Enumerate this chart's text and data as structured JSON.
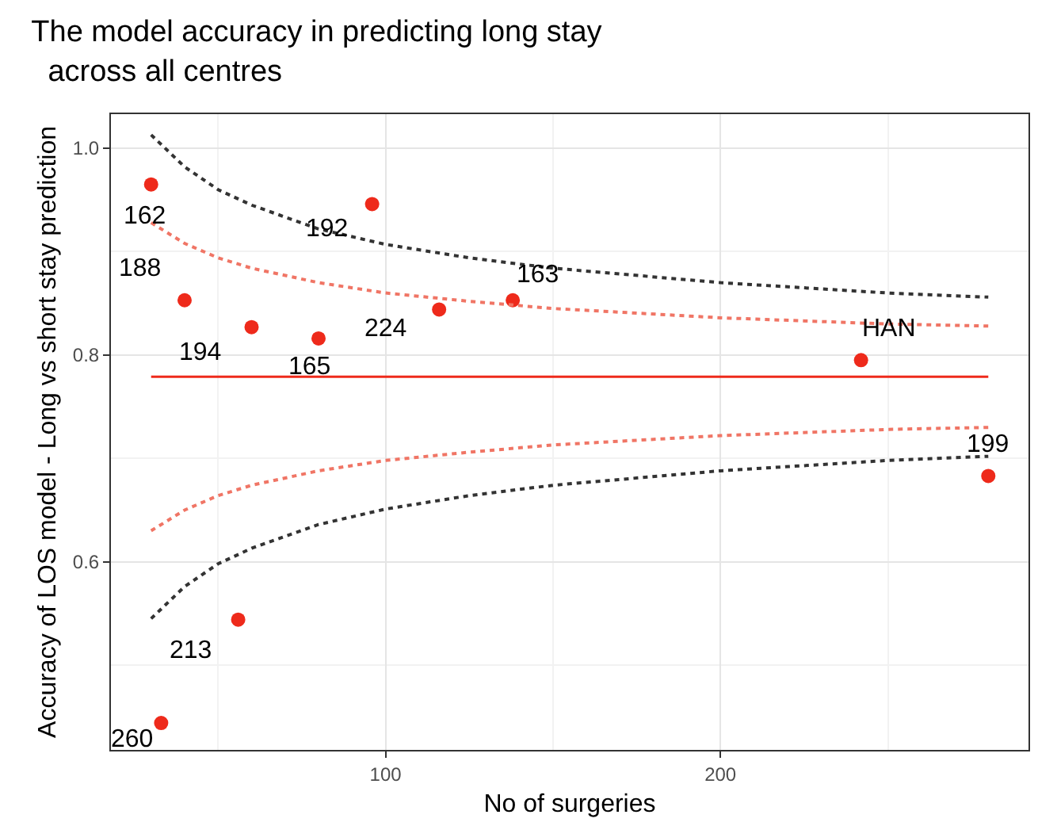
{
  "chart_data": {
    "type": "scatter",
    "title": "The model accuracy in predicting long stay\n  across all centres",
    "xlabel": "No of surgeries",
    "ylabel": "Accuracy of LOS model - Long vs short stay prediction",
    "xlim": [
      18,
      292
    ],
    "ylim": [
      0.418,
      1.033
    ],
    "xticks": [
      100,
      200
    ],
    "yticks": [
      0.6,
      0.8,
      {
        "value": 1.0,
        "label": "1.0"
      }
    ],
    "grid": true,
    "series": [
      {
        "color": "#ee2a1b",
        "marker": "circle",
        "x": [
          30,
          96,
          40,
          60,
          80,
          116,
          138,
          242,
          280,
          56,
          33
        ],
        "values": [
          0.965,
          0.946,
          0.853,
          0.827,
          0.816,
          0.844,
          0.853,
          0.795,
          0.683,
          0.544,
          0.444
        ]
      },
      {
        "type": "line",
        "color": "#ee2a1b",
        "line_style": "solid",
        "x": [
          30,
          280
        ],
        "values": [
          0.779,
          0.779
        ]
      },
      {
        "type": "line",
        "color": "#f07565",
        "line_style": "dotted",
        "x": [
          30,
          40,
          50,
          60,
          80,
          100,
          125,
          150,
          200,
          250,
          280
        ],
        "values": [
          0.928,
          0.908,
          0.894,
          0.884,
          0.87,
          0.86,
          0.852,
          0.845,
          0.836,
          0.83,
          0.828
        ]
      },
      {
        "type": "line",
        "color": "#f07565",
        "line_style": "dotted",
        "x": [
          30,
          40,
          50,
          60,
          80,
          100,
          125,
          150,
          200,
          250,
          280
        ],
        "values": [
          0.63,
          0.65,
          0.664,
          0.674,
          0.688,
          0.698,
          0.706,
          0.713,
          0.722,
          0.728,
          0.73
        ]
      },
      {
        "type": "line",
        "color": "#333333",
        "line_style": "dotted",
        "x": [
          30,
          40,
          50,
          60,
          80,
          100,
          125,
          150,
          200,
          250,
          280
        ],
        "values": [
          1.013,
          0.982,
          0.96,
          0.945,
          0.922,
          0.907,
          0.894,
          0.884,
          0.87,
          0.86,
          0.856
        ]
      },
      {
        "type": "line",
        "color": "#333333",
        "line_style": "dotted",
        "x": [
          30,
          40,
          50,
          60,
          80,
          100,
          125,
          150,
          200,
          250,
          280
        ],
        "values": [
          0.545,
          0.576,
          0.598,
          0.613,
          0.636,
          0.651,
          0.664,
          0.674,
          0.688,
          0.698,
          0.702
        ]
      }
    ],
    "annotations": [
      {
        "text": "162",
        "x": 30,
        "y": 0.965
      },
      {
        "text": "192",
        "x": 96,
        "y": 0.946
      },
      {
        "text": "188",
        "x": 40,
        "y": 0.853
      },
      {
        "text": "194",
        "x": 60,
        "y": 0.827
      },
      {
        "text": "165",
        "x": 80,
        "y": 0.816
      },
      {
        "text": "224",
        "x": 116,
        "y": 0.844
      },
      {
        "text": "163",
        "x": 138,
        "y": 0.853
      },
      {
        "text": "HAN",
        "x": 242,
        "y": 0.795
      },
      {
        "text": "199",
        "x": 280,
        "y": 0.683
      },
      {
        "text": "213",
        "x": 56,
        "y": 0.544
      },
      {
        "text": "260",
        "x": 33,
        "y": 0.444
      }
    ]
  }
}
